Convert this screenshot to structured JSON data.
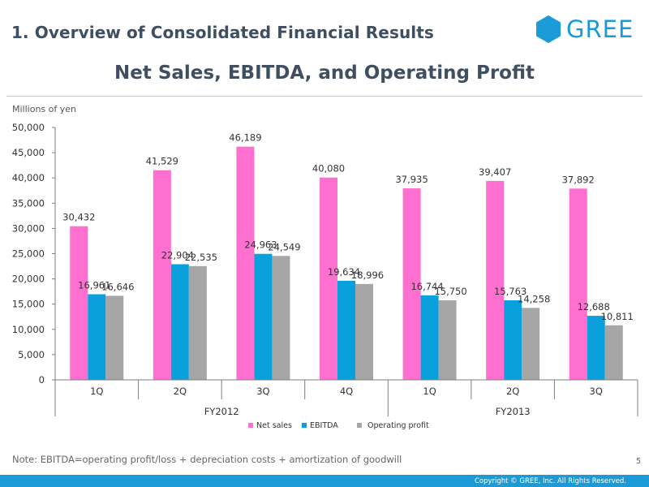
{
  "header": {
    "section_title": "1. Overview of Consolidated Financial Results",
    "logo_text": "GREE"
  },
  "colors": {
    "net_sales": "#ff6fcf",
    "ebitda": "#0aa0dc",
    "operating_profit": "#a6a6a6",
    "brand": "#1a9ad6"
  },
  "chart_data": {
    "type": "bar",
    "title": "Net Sales, EBITDA, and Operating Profit",
    "ylabel": "Millions of yen",
    "xlabel": "",
    "ylim": [
      0,
      50000
    ],
    "yticks": [
      0,
      5000,
      10000,
      15000,
      20000,
      25000,
      30000,
      35000,
      40000,
      45000,
      50000
    ],
    "ytick_labels": [
      "0",
      "5,000",
      "10,000",
      "15,000",
      "20,000",
      "25,000",
      "30,000",
      "35,000",
      "40,000",
      "45,000",
      "50,000"
    ],
    "categories": [
      "1Q",
      "2Q",
      "3Q",
      "4Q",
      "1Q",
      "2Q",
      "3Q"
    ],
    "groups": [
      {
        "label": "FY2012",
        "count": 4
      },
      {
        "label": "FY2013",
        "count": 3
      }
    ],
    "series": [
      {
        "name": "Net sales",
        "values": [
          30432,
          41529,
          46189,
          40080,
          37935,
          39407,
          37892
        ],
        "labels": [
          "30,432",
          "41,529",
          "46,189",
          "40,080",
          "37,935",
          "39,407",
          "37,892"
        ]
      },
      {
        "name": "EBITDA",
        "values": [
          16961,
          22904,
          24963,
          19634,
          16744,
          15763,
          12688
        ],
        "labels": [
          "16,961",
          "22,904",
          "24,963",
          "19,634",
          "16,744",
          "15,763",
          "12,688"
        ]
      },
      {
        "name": "Operating profit",
        "values": [
          16646,
          22535,
          24549,
          18996,
          15750,
          14258,
          10811
        ],
        "labels": [
          "16,646",
          "22,535",
          "24,549",
          "18,996",
          "15,750",
          "14,258",
          "10,811"
        ]
      }
    ],
    "legend_position": "bottom-center"
  },
  "footer": {
    "note": "Note: EBITDA=operating profit/loss + depreciation costs + amortization of goodwill",
    "page_number": "5",
    "copyright": "Copyright © GREE, Inc. All Rights Reserved."
  }
}
